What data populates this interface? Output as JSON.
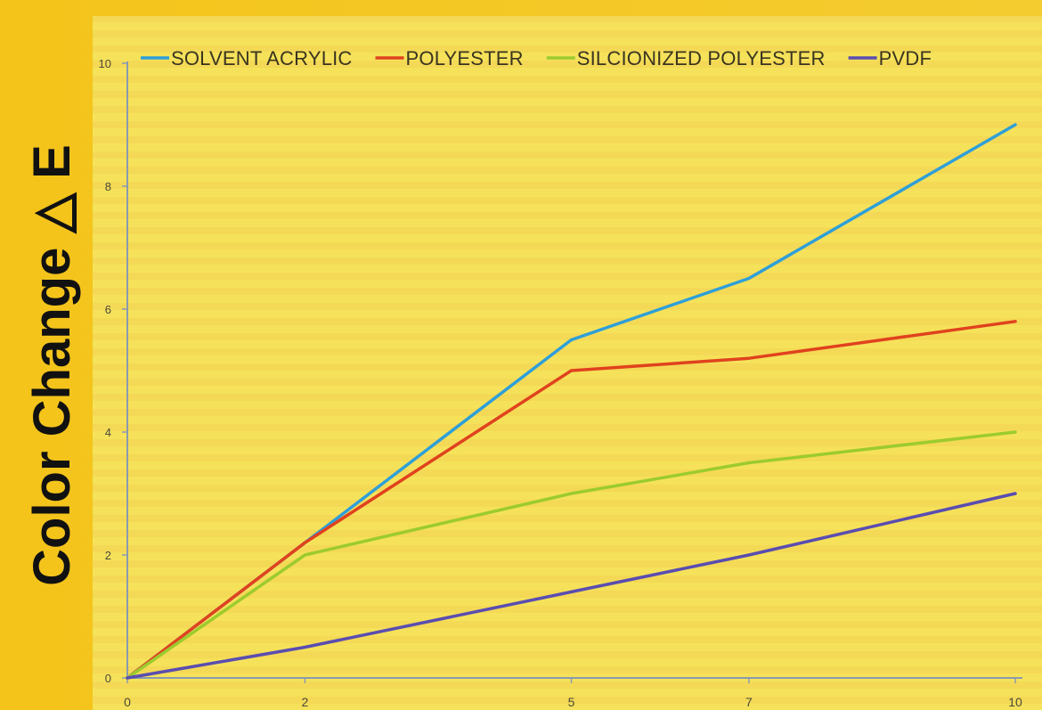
{
  "colors": {
    "page_background": "#f2c71a",
    "plot_background": "#f5e25a",
    "stripe": "#ecc64a",
    "axis": "#8a9ab0",
    "tick_text": "#4a4a3a",
    "legend_text": "#3a3420",
    "ylabel_text": "#111111"
  },
  "chart_data": {
    "type": "line",
    "title": "",
    "xlabel": "",
    "ylabel": "Color Change △ E",
    "x": [
      0,
      2,
      5,
      7,
      10
    ],
    "x_tick_labels": [
      "0",
      "2",
      "5",
      "7",
      "10"
    ],
    "y_ticks": [
      0,
      2,
      4,
      6,
      8,
      10
    ],
    "y_tick_labels": [
      "0",
      "2",
      "4",
      "6",
      "8",
      "10"
    ],
    "ylim": [
      0,
      10
    ],
    "grid": false,
    "legend_position": "top",
    "series": [
      {
        "name": "SOLVENT ACRYLIC",
        "color": "#2f9fd8",
        "values": [
          0,
          2.2,
          5.5,
          6.5,
          9.0
        ]
      },
      {
        "name": "POLYESTER",
        "color": "#e0421e",
        "values": [
          0,
          2.2,
          5.0,
          5.2,
          5.8
        ]
      },
      {
        "name": "SILCIONIZED POLYESTER",
        "color": "#9ccb2e",
        "values": [
          0,
          2.0,
          3.0,
          3.5,
          4.0
        ]
      },
      {
        "name": "PVDF",
        "color": "#5a4db0",
        "values": [
          0,
          0.5,
          1.4,
          2.0,
          3.0
        ]
      }
    ]
  }
}
